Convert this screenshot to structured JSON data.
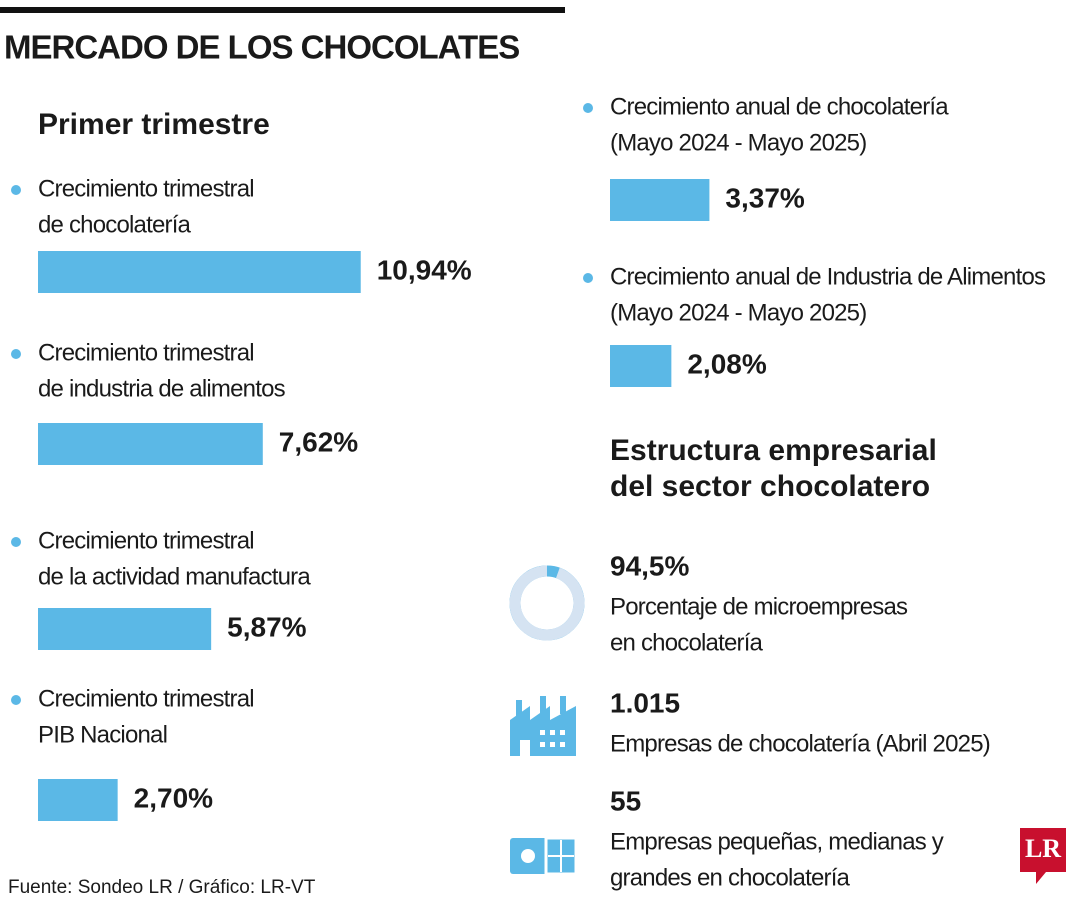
{
  "title": "MERCADO DE LOS CHOCOLATES",
  "quarterly": {
    "heading": "Primer trimestre",
    "items": [
      {
        "label": [
          "Crecimiento trimestral",
          "de chocolatería"
        ],
        "value": 10.94,
        "value_label": "10,94%"
      },
      {
        "label": [
          "Crecimiento trimestral",
          "de industria de alimentos"
        ],
        "value": 7.62,
        "value_label": "7,62%"
      },
      {
        "label": [
          "Crecimiento trimestral",
          "de la actividad manufactura"
        ],
        "value": 5.87,
        "value_label": "5,87%"
      },
      {
        "label": [
          "Crecimiento trimestral",
          "PIB Nacional"
        ],
        "value": 2.7,
        "value_label": "2,70%"
      }
    ]
  },
  "annual": {
    "items": [
      {
        "label": [
          "Crecimiento anual de chocolatería",
          "(Mayo 2024 - Mayo 2025)"
        ],
        "value": 3.37,
        "value_label": "3,37%"
      },
      {
        "label": [
          "Crecimiento anual de Industria de Alimentos",
          "(Mayo 2024 - Mayo 2025)"
        ],
        "value": 2.08,
        "value_label": "2,08%"
      }
    ]
  },
  "structure": {
    "heading": [
      "Estructura empresarial",
      "del sector chocolatero"
    ],
    "items": [
      {
        "value": 94.5,
        "value_label": "94,5%",
        "label": [
          "Porcentaje de microempresas",
          "en chocolatería"
        ]
      },
      {
        "value": 1015,
        "value_label": "1.015",
        "label": [
          "Empresas de chocolatería (Abril 2025)"
        ]
      },
      {
        "value": 55,
        "value_label": "55",
        "label": [
          "Empresas pequeñas, medianas y",
          "grandes en chocolatería"
        ]
      }
    ]
  },
  "source": "Fuente:  Sondeo LR / Gráfico: LR-VT",
  "logo": "LR"
}
